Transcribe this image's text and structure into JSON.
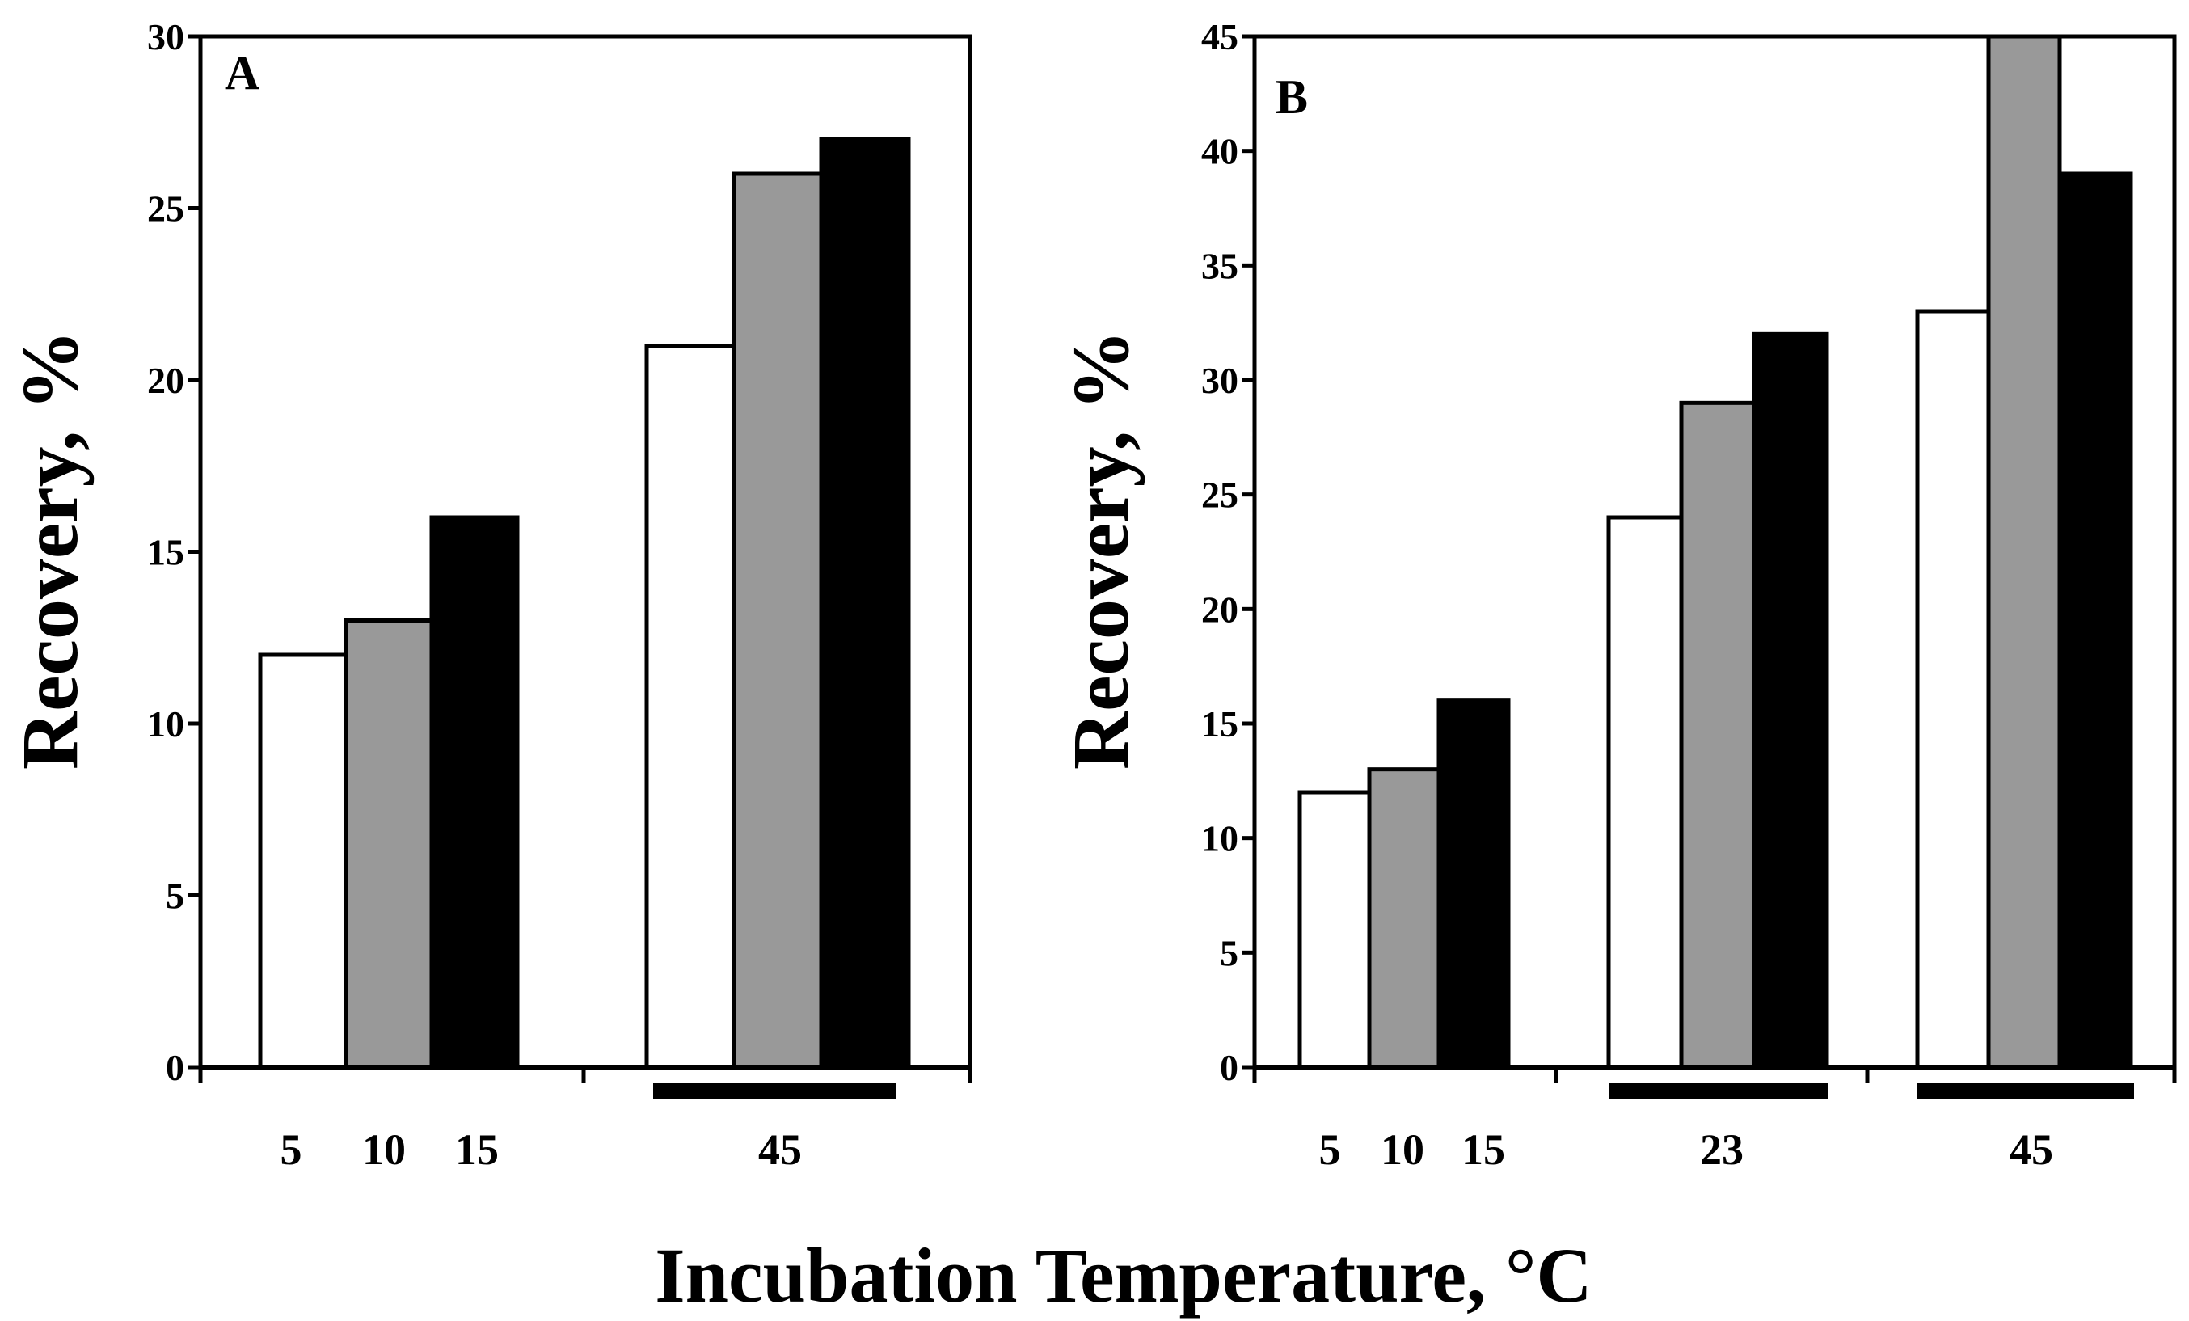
{
  "figure": {
    "xlabel": "Incubation Temperature, °C"
  },
  "chart_data": [
    {
      "type": "bar",
      "panel": "A",
      "ylabel": "Recovery, %",
      "ylim": [
        0,
        30
      ],
      "yticks": [
        0,
        5,
        10,
        15,
        20,
        25,
        30
      ],
      "groups": [
        {
          "labels": [
            "5",
            "10",
            "15"
          ],
          "values": [
            12,
            13,
            16
          ],
          "underbar": false
        },
        {
          "labels": [
            "45"
          ],
          "values": [
            21,
            26,
            27
          ],
          "underbar": true
        }
      ],
      "colors": [
        "#ffffff",
        "#999999",
        "#000000"
      ]
    },
    {
      "type": "bar",
      "panel": "B",
      "ylabel": "Recovery, %",
      "ylim": [
        0,
        45
      ],
      "yticks": [
        0,
        5,
        10,
        15,
        20,
        25,
        30,
        35,
        40,
        45
      ],
      "groups": [
        {
          "labels": [
            "5",
            "10",
            "15"
          ],
          "values": [
            12,
            13,
            16
          ],
          "underbar": false
        },
        {
          "labels": [
            "23"
          ],
          "values": [
            24,
            29,
            32
          ],
          "underbar": true
        },
        {
          "labels": [
            "45"
          ],
          "values": [
            33,
            45,
            39
          ],
          "underbar": true
        }
      ],
      "colors": [
        "#ffffff",
        "#999999",
        "#000000"
      ]
    }
  ]
}
